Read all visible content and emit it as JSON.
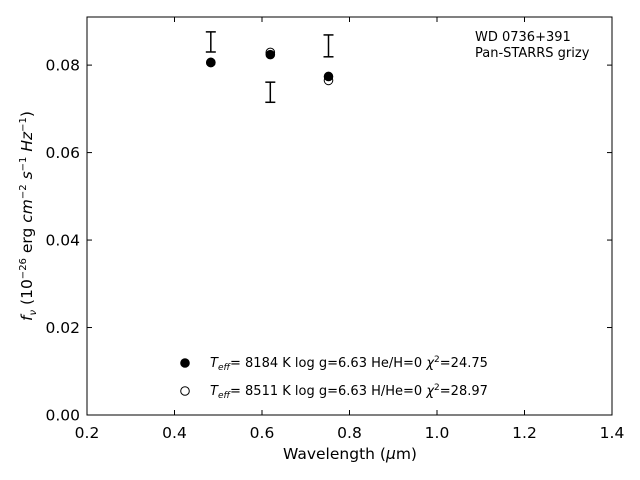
{
  "chart_data": {
    "type": "scatter",
    "xlabel": "Wavelength (μm)",
    "ylabel": "f_ν (10^-26 erg cm^-2 s^-1 Hz^-1)",
    "xlim": [
      0.2,
      1.4
    ],
    "ylim": [
      0.0,
      0.091
    ],
    "xticks": [
      0.2,
      0.4,
      0.6,
      0.8,
      1.0,
      1.2,
      1.4
    ],
    "xtick_labels": [
      "0.2",
      "0.4",
      "0.6",
      "0.8",
      "1.0",
      "1.2",
      "1.4"
    ],
    "yticks": [
      0.0,
      0.02,
      0.04,
      0.06,
      0.08
    ],
    "ytick_labels": [
      "0.00",
      "0.02",
      "0.04",
      "0.06",
      "0.08"
    ],
    "grid": false,
    "annotation": [
      "WD 0736+391",
      "Pan-STARRS grizy"
    ],
    "observed": {
      "x": [
        0.483,
        0.619,
        0.752
      ],
      "y": [
        0.0853,
        0.0738,
        0.0844
      ],
      "yerr": [
        0.0023,
        0.0023,
        0.0025
      ]
    },
    "series": [
      {
        "marker": "filled-circle",
        "x": [
          0.483,
          0.619,
          0.752
        ],
        "y": [
          0.0806,
          0.0824,
          0.0774
        ],
        "legend": {
          "teff": "8184 K",
          "logg": "log g=6.63",
          "comp": "He/H=0",
          "chi2": "=24.75"
        }
      },
      {
        "marker": "open-circle",
        "x": [
          0.483,
          0.619,
          0.752
        ],
        "y": [
          0.0806,
          0.0829,
          0.0765
        ],
        "legend": {
          "teff": "8511 K",
          "logg": "log g=6.63",
          "comp": "H/He=0",
          "chi2": "=28.97"
        }
      }
    ]
  }
}
